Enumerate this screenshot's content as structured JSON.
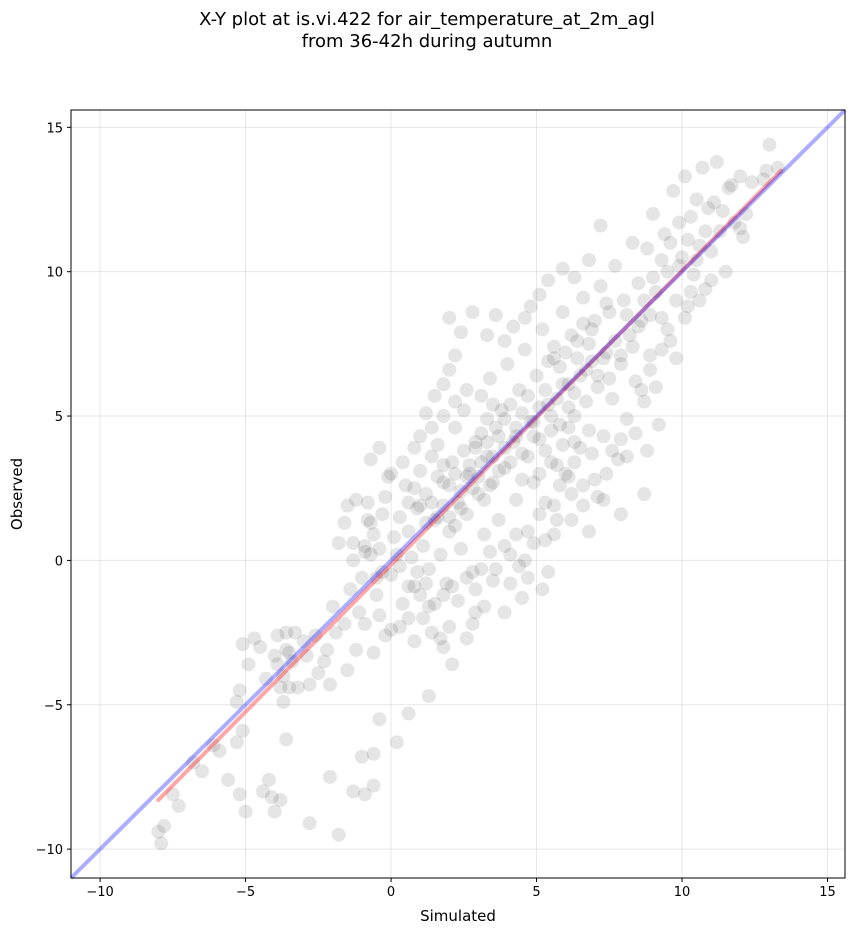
{
  "chart_data": {
    "type": "scatter",
    "title": "X-Y plot at is.vi.422 for air_temperature_at_2m_agl",
    "subtitle": "from 36-42h during autumn",
    "xlabel": "Simulated",
    "ylabel": "Observed",
    "xlim": [
      -11,
      15.6
    ],
    "ylim": [
      -11,
      15.6
    ],
    "xticks": [
      -10,
      -5,
      0,
      5,
      10,
      15
    ],
    "yticks": [
      -10,
      -5,
      0,
      5,
      10,
      15
    ],
    "xtick_labels": [
      "−10",
      "−5",
      "0",
      "5",
      "10",
      "15"
    ],
    "ytick_labels": [
      "−10",
      "−5",
      "0",
      "5",
      "10",
      "15"
    ],
    "grid": true,
    "colors": {
      "points": "#000000",
      "regression": "#ff0000",
      "identity": "#0000ff"
    },
    "lines": {
      "identity": {
        "x": [
          -11,
          15.6
        ],
        "y": [
          -11,
          15.6
        ]
      },
      "regression": {
        "x": [
          -8.0,
          13.4
        ],
        "y": [
          -8.3,
          13.5
        ]
      }
    },
    "points": [
      [
        -7.8,
        -9.2
      ],
      [
        -7.9,
        -9.8
      ],
      [
        -8.0,
        -9.4
      ],
      [
        -7.5,
        -8.1
      ],
      [
        -7.3,
        -8.5
      ],
      [
        -6.8,
        -7.0
      ],
      [
        -6.5,
        -7.3
      ],
      [
        -6.1,
        -6.4
      ],
      [
        -5.9,
        -6.6
      ],
      [
        -5.6,
        -7.6
      ],
      [
        -5.2,
        -8.1
      ],
      [
        -5.0,
        -8.7
      ],
      [
        -5.3,
        -6.3
      ],
      [
        -5.1,
        -5.9
      ],
      [
        -5.2,
        -4.5
      ],
      [
        -5.3,
        -4.9
      ],
      [
        -5.1,
        -2.9
      ],
      [
        -4.5,
        -3.0
      ],
      [
        -4.2,
        -7.6
      ],
      [
        -4.4,
        -8.0
      ],
      [
        -4.1,
        -8.2
      ],
      [
        -4.0,
        -8.7
      ],
      [
        -3.8,
        -8.3
      ],
      [
        -3.9,
        -2.6
      ],
      [
        -3.6,
        -2.5
      ],
      [
        -3.5,
        -3.2
      ],
      [
        -3.4,
        -3.5
      ],
      [
        -3.6,
        -3.1
      ],
      [
        -3.7,
        -4.0
      ],
      [
        -3.8,
        -4.4
      ],
      [
        -3.5,
        -4.4
      ],
      [
        -3.7,
        -4.9
      ],
      [
        -3.6,
        -6.2
      ],
      [
        -3.9,
        -3.6
      ],
      [
        -3.3,
        -2.5
      ],
      [
        -3.0,
        -2.8
      ],
      [
        -2.9,
        -3.3
      ],
      [
        -2.8,
        -4.3
      ],
      [
        -2.6,
        -2.6
      ],
      [
        -2.3,
        -3.5
      ],
      [
        -2.1,
        -4.3
      ],
      [
        -2.2,
        -3.1
      ],
      [
        -1.9,
        -2.5
      ],
      [
        -1.8,
        -9.5
      ],
      [
        -2.1,
        -7.5
      ],
      [
        -2.8,
        -9.1
      ],
      [
        -1.3,
        -8.0
      ],
      [
        -0.9,
        -8.1
      ],
      [
        -0.6,
        -7.8
      ],
      [
        -1.0,
        -6.8
      ],
      [
        -0.6,
        -6.7
      ],
      [
        -0.4,
        -5.5
      ],
      [
        0.2,
        -6.3
      ],
      [
        0.6,
        -5.3
      ],
      [
        1.3,
        -4.7
      ],
      [
        -1.5,
        -3.8
      ],
      [
        -1.2,
        -3.1
      ],
      [
        -0.6,
        -3.2
      ],
      [
        -0.9,
        -2.2
      ],
      [
        -0.4,
        -1.9
      ],
      [
        -0.2,
        -2.6
      ],
      [
        0.0,
        -2.4
      ],
      [
        0.3,
        -2.3
      ],
      [
        0.6,
        -2.0
      ],
      [
        0.8,
        -2.8
      ],
      [
        1.1,
        -2.0
      ],
      [
        1.3,
        -1.6
      ],
      [
        1.4,
        -2.5
      ],
      [
        1.7,
        -2.7
      ],
      [
        2.0,
        -2.3
      ],
      [
        1.8,
        -3.0
      ],
      [
        2.1,
        -3.6
      ],
      [
        2.6,
        -2.7
      ],
      [
        2.8,
        -2.2
      ],
      [
        -1.0,
        -0.6
      ],
      [
        -0.9,
        0.5
      ],
      [
        -0.7,
        1.3
      ],
      [
        -0.8,
        2.0
      ],
      [
        -0.7,
        0.2
      ],
      [
        -0.6,
        0.9
      ],
      [
        -0.5,
        -0.6
      ],
      [
        -0.4,
        0.4
      ],
      [
        -0.3,
        1.6
      ],
      [
        -0.2,
        2.2
      ],
      [
        -0.1,
        2.9
      ],
      [
        0.1,
        0.8
      ],
      [
        0.3,
        1.5
      ],
      [
        0.3,
        -0.2
      ],
      [
        0.5,
        2.6
      ],
      [
        0.6,
        1.0
      ],
      [
        0.7,
        0.1
      ],
      [
        0.8,
        -0.9
      ],
      [
        0.9,
        1.8
      ],
      [
        1.0,
        3.1
      ],
      [
        1.1,
        0.5
      ],
      [
        1.2,
        2.3
      ],
      [
        1.3,
        -0.3
      ],
      [
        1.4,
        3.6
      ],
      [
        1.5,
        1.4
      ],
      [
        1.6,
        4.0
      ],
      [
        1.7,
        0.2
      ],
      [
        1.8,
        2.7
      ],
      [
        1.9,
        -0.8
      ],
      [
        2.0,
        1.0
      ],
      [
        2.1,
        3.4
      ],
      [
        2.2,
        4.6
      ],
      [
        2.3,
        2.0
      ],
      [
        2.4,
        0.4
      ],
      [
        2.5,
        5.2
      ],
      [
        2.6,
        1.6
      ],
      [
        2.7,
        3.0
      ],
      [
        2.8,
        -0.4
      ],
      [
        2.9,
        4.1
      ],
      [
        3.0,
        2.3
      ],
      [
        3.1,
        5.7
      ],
      [
        3.2,
        0.9
      ],
      [
        3.3,
        3.6
      ],
      [
        3.4,
        6.3
      ],
      [
        3.5,
        2.7
      ],
      [
        3.6,
        4.6
      ],
      [
        3.7,
        1.4
      ],
      [
        3.8,
        5.2
      ],
      [
        3.9,
        3.2
      ],
      [
        4.0,
        6.8
      ],
      [
        4.1,
        0.2
      ],
      [
        4.2,
        4.1
      ],
      [
        4.3,
        2.1
      ],
      [
        4.4,
        5.9
      ],
      [
        4.5,
        3.7
      ],
      [
        4.6,
        7.3
      ],
      [
        4.7,
        1.0
      ],
      [
        4.8,
        4.8
      ],
      [
        4.9,
        2.7
      ],
      [
        5.0,
        6.4
      ],
      [
        5.1,
        4.2
      ],
      [
        5.2,
        8.0
      ],
      [
        5.3,
        2.0
      ],
      [
        5.4,
        5.4
      ],
      [
        5.5,
        3.4
      ],
      [
        5.6,
        7.0
      ],
      [
        5.7,
        1.4
      ],
      [
        5.8,
        4.7
      ],
      [
        5.9,
        8.6
      ],
      [
        6.0,
        3.0
      ],
      [
        6.1,
        6.1
      ],
      [
        6.2,
        2.3
      ],
      [
        6.3,
        5.0
      ],
      [
        6.4,
        7.6
      ],
      [
        6.5,
        3.9
      ],
      [
        6.6,
        9.1
      ],
      [
        6.7,
        6.6
      ],
      [
        6.8,
        4.5
      ],
      [
        6.9,
        8.0
      ],
      [
        7.0,
        2.8
      ],
      [
        7.1,
        6.0
      ],
      [
        7.2,
        9.5
      ],
      [
        7.3,
        4.3
      ],
      [
        7.4,
        7.2
      ],
      [
        7.5,
        8.6
      ],
      [
        7.6,
        5.6
      ],
      [
        7.7,
        10.2
      ],
      [
        7.8,
        3.5
      ],
      [
        7.9,
        6.8
      ],
      [
        8.0,
        9.0
      ],
      [
        8.1,
        4.9
      ],
      [
        8.2,
        7.8
      ],
      [
        8.3,
        11.0
      ],
      [
        8.4,
        6.2
      ],
      [
        8.5,
        9.6
      ],
      [
        8.6,
        8.3
      ],
      [
        8.7,
        5.5
      ],
      [
        8.8,
        10.8
      ],
      [
        8.9,
        7.1
      ],
      [
        9.0,
        12.0
      ],
      [
        9.1,
        9.3
      ],
      [
        9.2,
        4.7
      ],
      [
        9.3,
        8.4
      ],
      [
        9.4,
        11.3
      ],
      [
        9.5,
        10.0
      ],
      [
        9.6,
        7.6
      ],
      [
        9.7,
        12.8
      ],
      [
        9.8,
        9.0
      ],
      [
        9.9,
        11.7
      ],
      [
        10.0,
        10.5
      ],
      [
        10.1,
        13.3
      ],
      [
        10.2,
        8.8
      ],
      [
        10.3,
        11.9
      ],
      [
        10.4,
        9.9
      ],
      [
        10.5,
        12.5
      ],
      [
        10.6,
        10.9
      ],
      [
        10.7,
        13.6
      ],
      [
        10.8,
        9.4
      ],
      [
        10.9,
        12.2
      ],
      [
        11.0,
        10.7
      ],
      [
        11.2,
        13.8
      ],
      [
        11.3,
        11.4
      ],
      [
        11.5,
        10.0
      ],
      [
        11.6,
        12.9
      ],
      [
        11.8,
        11.7
      ],
      [
        12.0,
        13.3
      ],
      [
        12.1,
        11.2
      ],
      [
        12.2,
        12.0
      ],
      [
        12.4,
        13.1
      ],
      [
        12.9,
        13.5
      ],
      [
        13.0,
        14.4
      ],
      [
        13.3,
        13.6
      ],
      [
        11.7,
        13.0
      ],
      [
        12.8,
        13.2
      ],
      [
        8.7,
        2.3
      ],
      [
        8.8,
        3.8
      ],
      [
        7.9,
        1.6
      ],
      [
        7.3,
        2.1
      ],
      [
        6.8,
        1.0
      ],
      [
        6.6,
        1.9
      ],
      [
        6.2,
        1.4
      ],
      [
        5.6,
        0.9
      ],
      [
        5.4,
        -0.4
      ],
      [
        5.2,
        -1.0
      ],
      [
        4.7,
        -0.6
      ],
      [
        4.5,
        -1.3
      ],
      [
        3.9,
        -1.8
      ],
      [
        4.4,
        -0.2
      ],
      [
        3.5,
        -0.7
      ],
      [
        3.2,
        -1.6
      ],
      [
        2.9,
        -1.0
      ],
      [
        -0.8,
        1.4
      ],
      [
        -0.9,
        0.3
      ],
      [
        -1.3,
        0.6
      ],
      [
        -1.6,
        1.3
      ],
      [
        -1.8,
        0.6
      ],
      [
        -1.5,
        1.9
      ],
      [
        -1.2,
        2.1
      ],
      [
        -1.3,
        0.0
      ],
      [
        -0.5,
        -1.2
      ],
      [
        -0.3,
        -0.4
      ],
      [
        0.0,
        -0.5
      ],
      [
        0.2,
        0.2
      ],
      [
        0.4,
        -1.5
      ],
      [
        0.6,
        -0.9
      ],
      [
        0.9,
        -0.4
      ],
      [
        1.0,
        -1.2
      ],
      [
        1.2,
        -0.8
      ],
      [
        1.5,
        -1.5
      ],
      [
        1.8,
        -1.2
      ],
      [
        2.1,
        -0.9
      ],
      [
        2.3,
        -1.4
      ],
      [
        2.6,
        -0.6
      ],
      [
        2.9,
        -1.8
      ],
      [
        3.1,
        -0.3
      ],
      [
        3.4,
        0.3
      ],
      [
        3.6,
        -0.3
      ],
      [
        3.9,
        0.5
      ],
      [
        4.1,
        -0.8
      ],
      [
        4.3,
        0.9
      ],
      [
        4.6,
        0.0
      ],
      [
        4.9,
        0.6
      ],
      [
        5.1,
        1.6
      ],
      [
        5.3,
        0.7
      ],
      [
        5.6,
        1.9
      ],
      [
        5.8,
        2.6
      ],
      [
        6.1,
        2.9
      ],
      [
        6.3,
        3.4
      ],
      [
        6.6,
        2.6
      ],
      [
        6.9,
        3.7
      ],
      [
        7.1,
        2.2
      ],
      [
        7.4,
        3.0
      ],
      [
        7.6,
        3.8
      ],
      [
        7.9,
        4.2
      ],
      [
        8.1,
        3.6
      ],
      [
        8.4,
        4.4
      ],
      [
        8.6,
        5.9
      ],
      [
        8.9,
        6.6
      ],
      [
        9.1,
        6.0
      ],
      [
        9.3,
        7.3
      ],
      [
        9.5,
        8.0
      ],
      [
        9.8,
        7.0
      ],
      [
        10.1,
        8.4
      ],
      [
        10.3,
        9.3
      ],
      [
        10.6,
        9.0
      ],
      [
        11.0,
        9.7
      ],
      [
        1.2,
        5.1
      ],
      [
        1.5,
        5.7
      ],
      [
        1.8,
        6.1
      ],
      [
        2.0,
        6.6
      ],
      [
        2.2,
        7.1
      ],
      [
        2.4,
        7.9
      ],
      [
        2.0,
        8.4
      ],
      [
        2.8,
        8.6
      ],
      [
        3.3,
        7.8
      ],
      [
        3.6,
        8.5
      ],
      [
        3.9,
        7.6
      ],
      [
        4.2,
        8.1
      ],
      [
        4.6,
        8.4
      ],
      [
        4.8,
        8.8
      ],
      [
        5.1,
        9.2
      ],
      [
        5.4,
        9.7
      ],
      [
        5.9,
        10.1
      ],
      [
        6.3,
        9.8
      ],
      [
        6.8,
        10.4
      ],
      [
        7.2,
        11.6
      ],
      [
        3.1,
        4.4
      ],
      [
        3.3,
        4.9
      ],
      [
        3.5,
        5.4
      ],
      [
        3.7,
        4.3
      ],
      [
        3.9,
        4.9
      ],
      [
        4.1,
        5.4
      ],
      [
        4.3,
        4.6
      ],
      [
        4.5,
        5.1
      ],
      [
        4.7,
        5.7
      ],
      [
        4.9,
        4.8
      ],
      [
        5.1,
        5.3
      ],
      [
        5.3,
        5.9
      ],
      [
        5.5,
        5.0
      ],
      [
        5.7,
        5.6
      ],
      [
        5.9,
        6.1
      ],
      [
        6.1,
        5.3
      ],
      [
        6.3,
        5.8
      ],
      [
        6.5,
        6.4
      ],
      [
        6.7,
        5.5
      ],
      [
        6.9,
        6.9
      ],
      [
        7.1,
        6.4
      ],
      [
        7.3,
        7.0
      ],
      [
        7.5,
        6.3
      ],
      [
        7.7,
        7.6
      ],
      [
        7.9,
        7.1
      ],
      [
        8.1,
        8.5
      ],
      [
        8.3,
        7.4
      ],
      [
        8.5,
        8.1
      ],
      [
        8.7,
        9.0
      ],
      [
        8.9,
        8.5
      ],
      [
        2.5,
        3.8
      ],
      [
        2.7,
        3.3
      ],
      [
        2.9,
        3.9
      ],
      [
        3.1,
        3.4
      ],
      [
        3.3,
        4.1
      ],
      [
        3.5,
        3.6
      ],
      [
        3.7,
        3.1
      ],
      [
        3.9,
        3.9
      ],
      [
        4.1,
        3.4
      ],
      [
        4.3,
        4.3
      ],
      [
        4.5,
        2.8
      ],
      [
        4.7,
        3.6
      ],
      [
        4.9,
        4.3
      ],
      [
        5.1,
        3.0
      ],
      [
        5.3,
        3.8
      ],
      [
        5.5,
        4.5
      ],
      [
        5.7,
        3.3
      ],
      [
        5.9,
        4.0
      ],
      [
        6.1,
        4.6
      ],
      [
        6.3,
        4.1
      ],
      [
        1.6,
        2.9
      ],
      [
        1.8,
        3.3
      ],
      [
        2.0,
        2.6
      ],
      [
        2.2,
        3.0
      ],
      [
        2.4,
        2.4
      ],
      [
        2.6,
        2.9
      ],
      [
        2.8,
        2.5
      ],
      [
        3.0,
        2.9
      ],
      [
        3.2,
        2.1
      ],
      [
        3.4,
        2.6
      ],
      [
        0.6,
        2.0
      ],
      [
        0.8,
        2.5
      ],
      [
        1.0,
        1.9
      ],
      [
        1.2,
        1.3
      ],
      [
        1.4,
        2.0
      ],
      [
        1.6,
        1.5
      ],
      [
        1.8,
        1.9
      ],
      [
        2.0,
        1.5
      ],
      [
        2.2,
        1.2
      ],
      [
        2.4,
        1.8
      ],
      [
        -0.7,
        3.5
      ],
      [
        -0.4,
        3.9
      ],
      [
        0.0,
        3.0
      ],
      [
        0.4,
        3.4
      ],
      [
        0.8,
        3.9
      ],
      [
        1.0,
        4.3
      ],
      [
        1.4,
        4.6
      ],
      [
        1.8,
        5.0
      ],
      [
        2.2,
        5.5
      ],
      [
        2.6,
        5.9
      ],
      [
        5.4,
        6.9
      ],
      [
        5.6,
        7.4
      ],
      [
        5.8,
        6.7
      ],
      [
        6.0,
        7.2
      ],
      [
        6.2,
        7.8
      ],
      [
        6.4,
        7.0
      ],
      [
        6.6,
        8.2
      ],
      [
        6.8,
        7.5
      ],
      [
        7.0,
        8.3
      ],
      [
        7.4,
        8.9
      ],
      [
        -4.9,
        -3.6
      ],
      [
        -4.7,
        -2.7
      ],
      [
        -4.3,
        -4.1
      ],
      [
        -4.0,
        -3.3
      ],
      [
        -3.2,
        -4.4
      ],
      [
        -2.5,
        -3.9
      ],
      [
        -1.6,
        -2.2
      ],
      [
        -1.4,
        -1.0
      ],
      [
        -2.0,
        -1.6
      ],
      [
        -1.1,
        -1.8
      ],
      [
        9.3,
        10.4
      ],
      [
        9.6,
        11.0
      ],
      [
        9.9,
        10.2
      ],
      [
        10.2,
        11.1
      ],
      [
        10.5,
        10.4
      ],
      [
        10.8,
        11.4
      ],
      [
        11.1,
        12.4
      ],
      [
        11.4,
        12.1
      ],
      [
        12.0,
        11.5
      ],
      [
        9.0,
        9.8
      ]
    ]
  }
}
